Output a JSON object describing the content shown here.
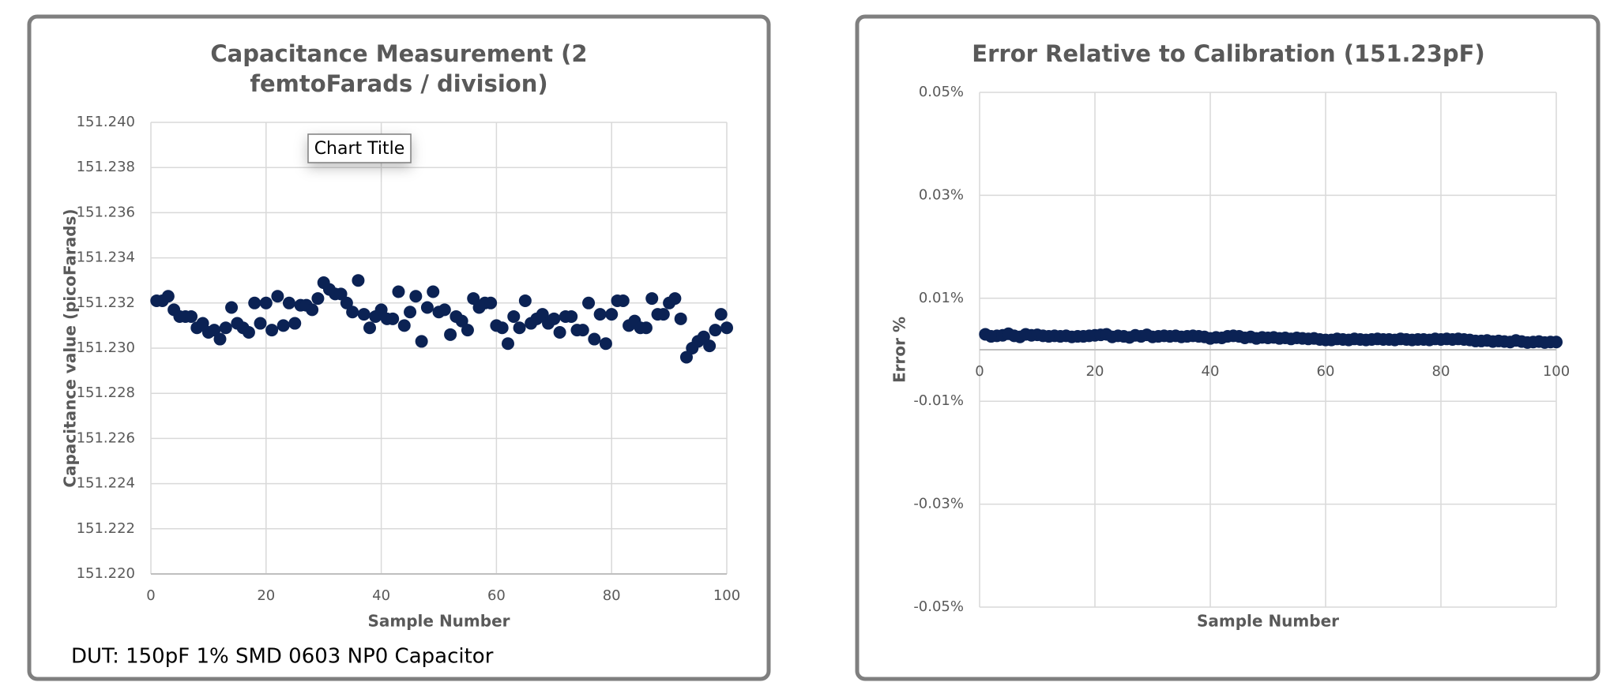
{
  "chart_data": [
    {
      "type": "scatter",
      "title": "Capacitance Measurement (2 femtoFarads / division)",
      "x_label": "Sample Number",
      "y_label": "Capacitance value (picoFarads)",
      "annotation": "Chart Title",
      "note": "DUT: 150pF 1% SMD 0603 NP0 Capacitor",
      "color": "#0b2254",
      "grid": true,
      "xlim": [
        0,
        100
      ],
      "xticks": [
        0,
        20,
        40,
        60,
        80,
        100
      ],
      "ylim": [
        151.22,
        151.24
      ],
      "yticks": [
        {
          "value": 151.22,
          "label": "151.220"
        },
        151.222,
        151.224,
        151.226,
        151.228,
        {
          "value": 151.23,
          "label": "151.230"
        },
        151.232,
        151.234,
        151.236,
        151.238,
        {
          "value": 151.24,
          "label": "151.240"
        }
      ],
      "x": [
        1,
        2,
        3,
        4,
        5,
        6,
        7,
        8,
        9,
        10,
        11,
        12,
        13,
        14,
        15,
        16,
        17,
        18,
        19,
        20,
        21,
        22,
        23,
        24,
        25,
        26,
        27,
        28,
        29,
        30,
        31,
        32,
        33,
        34,
        35,
        36,
        37,
        38,
        39,
        40,
        41,
        42,
        43,
        44,
        45,
        46,
        47,
        48,
        49,
        50,
        51,
        52,
        53,
        54,
        55,
        56,
        57,
        58,
        59,
        60,
        61,
        62,
        63,
        64,
        65,
        66,
        67,
        68,
        69,
        70,
        71,
        72,
        73,
        74,
        75,
        76,
        77,
        78,
        79,
        80,
        81,
        82,
        83,
        84,
        85,
        86,
        87,
        88,
        89,
        90,
        91,
        92,
        93,
        94,
        95,
        96,
        97,
        98,
        99,
        100
      ],
      "values": [
        151.2321,
        151.2321,
        151.2323,
        151.2317,
        151.2314,
        151.2314,
        151.2314,
        151.2309,
        151.2311,
        151.2307,
        151.2308,
        151.2304,
        151.2309,
        151.2318,
        151.2311,
        151.2309,
        151.2307,
        151.232,
        151.2311,
        151.232,
        151.2308,
        151.2323,
        151.231,
        151.232,
        151.2311,
        151.2319,
        151.2319,
        151.2317,
        151.2322,
        151.2329,
        151.2326,
        151.2324,
        151.2324,
        151.232,
        151.2316,
        151.233,
        151.2315,
        151.2309,
        151.2314,
        151.2317,
        151.2313,
        151.2313,
        151.2325,
        151.231,
        151.2316,
        151.2323,
        151.2303,
        151.2318,
        151.2325,
        151.2316,
        151.2317,
        151.2306,
        151.2314,
        151.2312,
        151.2308,
        151.2322,
        151.2318,
        151.232,
        151.232,
        151.231,
        151.2309,
        151.2302,
        151.2314,
        151.2309,
        151.2321,
        151.2311,
        151.2313,
        151.2315,
        151.2311,
        151.2313,
        151.2307,
        151.2314,
        151.2314,
        151.2308,
        151.2308,
        151.232,
        151.2304,
        151.2315,
        151.2302,
        151.2315,
        151.2321,
        151.2321,
        151.231,
        151.2312,
        151.2309,
        151.2309,
        151.2322,
        151.2315,
        151.2315,
        151.232,
        151.2322,
        151.2313,
        151.2296,
        151.23,
        151.2303,
        151.2305,
        151.2301,
        151.2308,
        151.2315,
        151.2309
      ]
    },
    {
      "type": "scatter",
      "title": "Error Relative to Calibration (151.23pF)",
      "x_label": "Sample Number",
      "y_label": "Error %",
      "color": "#0b2254",
      "grid": true,
      "xlim": [
        0,
        100
      ],
      "xticks": [
        0,
        20,
        40,
        60,
        80,
        100
      ],
      "ylim": [
        -0.05,
        0.05
      ],
      "yticks": [
        {
          "value": -0.05,
          "label": "-0.05%"
        },
        {
          "value": -0.03,
          "label": "-0.03%"
        },
        {
          "value": -0.01,
          "label": "-0.01%"
        },
        {
          "value": 0.01,
          "label": "0.01%"
        },
        {
          "value": 0.03,
          "label": "0.03%"
        },
        {
          "value": 0.05,
          "label": "0.05%"
        }
      ],
      "x": [
        1,
        2,
        3,
        4,
        5,
        6,
        7,
        8,
        9,
        10,
        11,
        12,
        13,
        14,
        15,
        16,
        17,
        18,
        19,
        20,
        21,
        22,
        23,
        24,
        25,
        26,
        27,
        28,
        29,
        30,
        31,
        32,
        33,
        34,
        35,
        36,
        37,
        38,
        39,
        40,
        41,
        42,
        43,
        44,
        45,
        46,
        47,
        48,
        49,
        50,
        51,
        52,
        53,
        54,
        55,
        56,
        57,
        58,
        59,
        60,
        61,
        62,
        63,
        64,
        65,
        66,
        67,
        68,
        69,
        70,
        71,
        72,
        73,
        74,
        75,
        76,
        77,
        78,
        79,
        80,
        81,
        82,
        83,
        84,
        85,
        86,
        87,
        88,
        89,
        90,
        91,
        92,
        93,
        94,
        95,
        96,
        97,
        98,
        99,
        100
      ],
      "values": [
        0.003,
        0.0026,
        0.0027,
        0.0028,
        0.0031,
        0.0027,
        0.0025,
        0.003,
        0.0028,
        0.0029,
        0.0027,
        0.0026,
        0.0027,
        0.0026,
        0.0027,
        0.0025,
        0.0026,
        0.0026,
        0.0027,
        0.0028,
        0.0029,
        0.003,
        0.0025,
        0.0027,
        0.0026,
        0.0024,
        0.0028,
        0.0026,
        0.0029,
        0.0025,
        0.0026,
        0.0027,
        0.0026,
        0.0027,
        0.0025,
        0.0026,
        0.0027,
        0.0026,
        0.0025,
        0.0022,
        0.0024,
        0.0023,
        0.0026,
        0.0027,
        0.0026,
        0.0023,
        0.0025,
        0.0022,
        0.0024,
        0.0023,
        0.0024,
        0.0022,
        0.0023,
        0.0021,
        0.0023,
        0.0022,
        0.0021,
        0.0022,
        0.002,
        0.0019,
        0.0019,
        0.0021,
        0.002,
        0.0019,
        0.0021,
        0.002,
        0.0019,
        0.002,
        0.0021,
        0.002,
        0.002,
        0.0019,
        0.0021,
        0.002,
        0.0019,
        0.002,
        0.002,
        0.0019,
        0.0021,
        0.002,
        0.0021,
        0.002,
        0.0021,
        0.002,
        0.0019,
        0.0017,
        0.0017,
        0.0018,
        0.0016,
        0.0017,
        0.0016,
        0.0015,
        0.0018,
        0.0016,
        0.0014,
        0.0015,
        0.0016,
        0.0014,
        0.0015,
        0.0015
      ]
    }
  ]
}
